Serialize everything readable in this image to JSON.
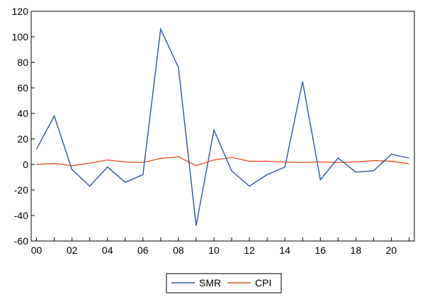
{
  "chart_data": {
    "type": "line",
    "x": [
      0,
      1,
      2,
      3,
      4,
      5,
      6,
      7,
      8,
      9,
      10,
      11,
      12,
      13,
      14,
      15,
      16,
      17,
      18,
      19,
      20,
      21
    ],
    "xtick_values": [
      0,
      2,
      4,
      6,
      8,
      10,
      12,
      14,
      16,
      18,
      20
    ],
    "xtick_labels": [
      "00",
      "02",
      "04",
      "06",
      "08",
      "10",
      "12",
      "14",
      "16",
      "18",
      "20"
    ],
    "xlim": [
      -0.3,
      21.3
    ],
    "ylim": [
      -60,
      120
    ],
    "yticks": [
      120,
      100,
      80,
      60,
      40,
      20,
      0,
      -20,
      -40,
      -60
    ],
    "grid": false,
    "legend_position": "bottom-center",
    "series": [
      {
        "name": "SMR",
        "color": "#2f5597",
        "values": [
          12,
          38,
          -4,
          -17,
          -2,
          -14,
          -8,
          106,
          76,
          -48,
          27,
          -5,
          -17,
          -8,
          -2,
          65,
          -12,
          5,
          -6,
          -5,
          8,
          5
        ]
      },
      {
        "name": "CPI",
        "color": "#e8562a",
        "values": [
          0,
          0.8,
          -1,
          1,
          3.5,
          2,
          1.5,
          4.8,
          6,
          -1,
          3.5,
          5.5,
          2.5,
          2.5,
          2,
          1.5,
          2,
          1.5,
          2,
          3,
          2.5,
          0.5
        ]
      }
    ],
    "title": "",
    "xlabel": "",
    "ylabel": ""
  }
}
